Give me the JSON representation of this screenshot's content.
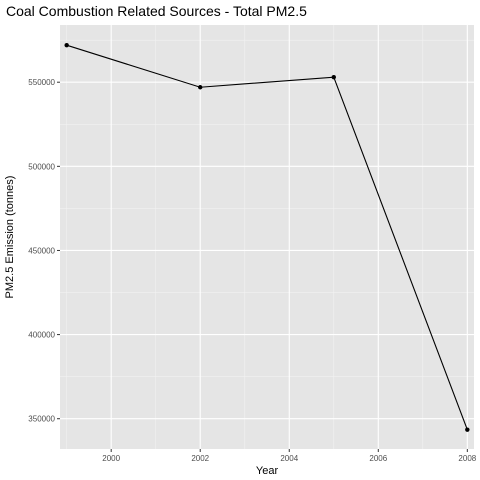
{
  "chart_data": {
    "type": "line",
    "title": "Coal Combustion Related Sources - Total PM2.5",
    "xlabel": "Year",
    "ylabel": "PM2.5 Emission (tonnes)",
    "x": [
      1999,
      2002,
      2005,
      2008
    ],
    "values": [
      572000,
      547000,
      553000,
      343500
    ],
    "xlim": [
      1998.85,
      2008.15
    ],
    "ylim": [
      332000,
      584000
    ],
    "x_ticks": [
      2000,
      2002,
      2004,
      2006,
      2008
    ],
    "x_tick_labels": [
      "2000",
      "2002",
      "2004",
      "2006",
      "2008"
    ],
    "y_ticks": [
      350000,
      400000,
      450000,
      500000,
      550000
    ],
    "y_tick_labels": [
      "350000",
      "400000",
      "450000",
      "500000",
      "550000"
    ],
    "grid": true,
    "colors": {
      "panel": "#e5e5e5",
      "grid_major": "#ffffff",
      "grid_minor": "#f2f2f2",
      "line": "#000000",
      "point": "#000000"
    }
  }
}
